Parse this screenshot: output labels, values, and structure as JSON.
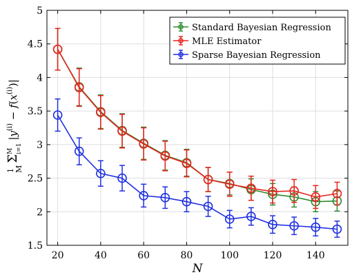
{
  "chart_data": {
    "type": "line",
    "title": "",
    "xlabel": "N",
    "ylabel": "1/M Σ_{i=1}^{M} |y^(i) − f(x^(i))|",
    "xlim": [
      15,
      155
    ],
    "ylim": [
      1.5,
      5
    ],
    "xticks": [
      20,
      40,
      60,
      80,
      100,
      120,
      140
    ],
    "yticks": [
      1.5,
      2,
      2.5,
      3,
      3.5,
      4,
      4.5,
      5
    ],
    "ytick_labels": [
      "1.5",
      "2",
      "2.5",
      "3",
      "3.5",
      "4",
      "4.5",
      "5"
    ],
    "grid": true,
    "legend_position": "top-right",
    "x": [
      20,
      30,
      40,
      50,
      60,
      70,
      80,
      90,
      100,
      110,
      120,
      130,
      140,
      150
    ],
    "series": [
      {
        "name": "Standard Bayesian Regression",
        "color": "#2e8b2e",
        "values": [
          4.42,
          3.86,
          3.49,
          3.21,
          3.02,
          2.84,
          2.73,
          2.48,
          2.42,
          2.33,
          2.26,
          2.22,
          2.15,
          2.16
        ],
        "errors": [
          0.31,
          0.28,
          0.25,
          0.25,
          0.24,
          0.22,
          0.2,
          0.18,
          0.17,
          0.16,
          0.16,
          0.15,
          0.15,
          0.15
        ]
      },
      {
        "name": "MLE Estimator",
        "color": "#e8231e",
        "values": [
          4.42,
          3.85,
          3.48,
          3.2,
          3.01,
          2.83,
          2.72,
          2.48,
          2.41,
          2.35,
          2.3,
          2.31,
          2.22,
          2.27
        ],
        "errors": [
          0.31,
          0.28,
          0.25,
          0.25,
          0.24,
          0.22,
          0.2,
          0.18,
          0.18,
          0.18,
          0.17,
          0.17,
          0.17,
          0.17
        ]
      },
      {
        "name": "Sparse Bayesian Regression",
        "color": "#1e2fe0",
        "values": [
          3.44,
          2.9,
          2.57,
          2.5,
          2.24,
          2.21,
          2.15,
          2.08,
          1.89,
          1.93,
          1.81,
          1.79,
          1.77,
          1.74
        ],
        "errors": [
          0.24,
          0.2,
          0.19,
          0.19,
          0.17,
          0.16,
          0.15,
          0.15,
          0.13,
          0.13,
          0.13,
          0.13,
          0.13,
          0.12
        ]
      }
    ]
  }
}
